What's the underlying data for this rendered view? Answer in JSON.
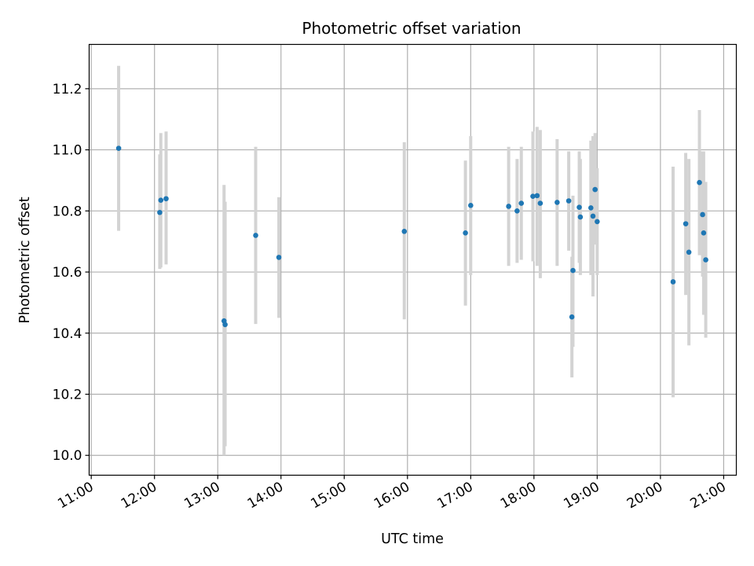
{
  "chart_data": {
    "type": "scatter",
    "title": "Photometric offset variation",
    "xlabel": "UTC time",
    "ylabel": "Photometric offset",
    "x_tick_labels": [
      "11:00",
      "12:00",
      "13:00",
      "14:00",
      "15:00",
      "16:00",
      "17:00",
      "18:00",
      "19:00",
      "20:00",
      "21:00"
    ],
    "y_tick_labels": [
      "10.0",
      "10.2",
      "10.4",
      "10.6",
      "10.8",
      "11.0",
      "11.2"
    ],
    "x_range": [
      "10:58",
      "21:12"
    ],
    "ylim": [
      9.935,
      11.345
    ],
    "grid": true,
    "colors": {
      "point": "#1f77b4",
      "errorbar": "#d3d3d3",
      "grid": "#b0b0b0"
    },
    "series": [
      {
        "points": [
          {
            "x": "11:26",
            "y": 11.005,
            "low": 10.735,
            "high": 11.275
          },
          {
            "x": "12:05",
            "y": 10.795,
            "low": 10.61,
            "high": 10.985
          },
          {
            "x": "12:06",
            "y": 10.835,
            "low": 10.615,
            "high": 11.055
          },
          {
            "x": "12:11",
            "y": 10.84,
            "low": 10.625,
            "high": 11.06
          },
          {
            "x": "13:06",
            "y": 10.44,
            "low": 10.0,
            "high": 10.885
          },
          {
            "x": "13:07",
            "y": 10.428,
            "low": 10.03,
            "high": 10.83
          },
          {
            "x": "13:36",
            "y": 10.72,
            "low": 10.43,
            "high": 11.01
          },
          {
            "x": "13:58",
            "y": 10.648,
            "low": 10.45,
            "high": 10.845
          },
          {
            "x": "15:57",
            "y": 10.733,
            "low": 10.445,
            "high": 11.025
          },
          {
            "x": "16:55",
            "y": 10.728,
            "low": 10.49,
            "high": 10.965
          },
          {
            "x": "17:00",
            "y": 10.818,
            "low": 10.59,
            "high": 11.045
          },
          {
            "x": "17:36",
            "y": 10.815,
            "low": 10.62,
            "high": 11.01
          },
          {
            "x": "17:44",
            "y": 10.8,
            "low": 10.63,
            "high": 10.97
          },
          {
            "x": "17:48",
            "y": 10.825,
            "low": 10.64,
            "high": 11.01
          },
          {
            "x": "17:59",
            "y": 10.848,
            "low": 10.635,
            "high": 11.06
          },
          {
            "x": "18:03",
            "y": 10.85,
            "low": 10.62,
            "high": 11.075
          },
          {
            "x": "18:06",
            "y": 10.825,
            "low": 10.58,
            "high": 11.065
          },
          {
            "x": "18:22",
            "y": 10.828,
            "low": 10.62,
            "high": 11.035
          },
          {
            "x": "18:33",
            "y": 10.833,
            "low": 10.67,
            "high": 10.995
          },
          {
            "x": "18:36",
            "y": 10.453,
            "low": 10.255,
            "high": 10.65
          },
          {
            "x": "18:37",
            "y": 10.605,
            "low": 10.355,
            "high": 10.85
          },
          {
            "x": "18:43",
            "y": 10.812,
            "low": 10.63,
            "high": 10.995
          },
          {
            "x": "18:44",
            "y": 10.78,
            "low": 10.59,
            "high": 10.97
          },
          {
            "x": "18:54",
            "y": 10.81,
            "low": 10.59,
            "high": 11.03
          },
          {
            "x": "18:56",
            "y": 10.783,
            "low": 10.52,
            "high": 11.045
          },
          {
            "x": "18:58",
            "y": 10.87,
            "low": 10.69,
            "high": 11.055
          },
          {
            "x": "19:00",
            "y": 10.765,
            "low": 10.59,
            "high": 10.94
          },
          {
            "x": "20:12",
            "y": 10.568,
            "low": 10.19,
            "high": 10.945
          },
          {
            "x": "20:24",
            "y": 10.758,
            "low": 10.525,
            "high": 10.99
          },
          {
            "x": "20:27",
            "y": 10.665,
            "low": 10.36,
            "high": 10.97
          },
          {
            "x": "20:37",
            "y": 10.893,
            "low": 10.655,
            "high": 11.13
          },
          {
            "x": "20:40",
            "y": 10.788,
            "low": 10.585,
            "high": 10.995
          },
          {
            "x": "20:41",
            "y": 10.728,
            "low": 10.46,
            "high": 10.995
          },
          {
            "x": "20:43",
            "y": 10.64,
            "low": 10.385,
            "high": 10.895
          }
        ]
      }
    ]
  }
}
